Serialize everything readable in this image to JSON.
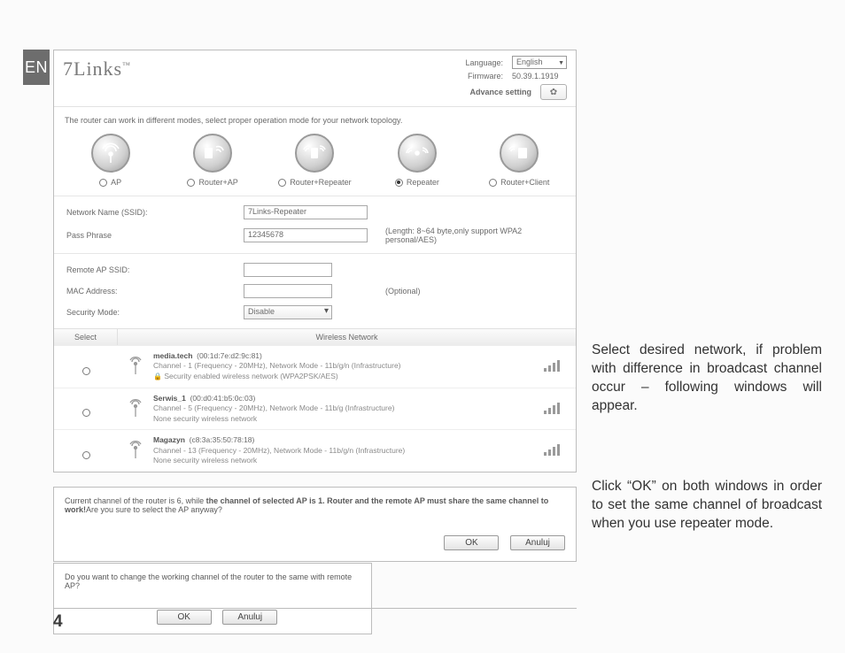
{
  "page_number": "4",
  "lang_badge": "EN",
  "brand": "7Links",
  "header": {
    "language_label": "Language:",
    "language_value": "English",
    "firmware_label": "Firmware:",
    "firmware_value": "50.39.1.1919",
    "advance_label": "Advance setting"
  },
  "intro": "The router can work in different modes, select proper operation mode for your network topology.",
  "modes": [
    {
      "label": "AP",
      "checked": false
    },
    {
      "label": "Router+AP",
      "checked": false
    },
    {
      "label": "Router+Repeater",
      "checked": false
    },
    {
      "label": "Repeater",
      "checked": true
    },
    {
      "label": "Router+Client",
      "checked": false
    }
  ],
  "settings": {
    "ssid_label": "Network Name (SSID):",
    "ssid_value": "7Links-Repeater",
    "pass_label": "Pass Phrase",
    "pass_value": "12345678",
    "pass_hint": "(Length: 8~64 byte,only support WPA2 personal/AES)"
  },
  "settings2": {
    "remote_ssid_label": "Remote AP SSID:",
    "mac_label": "MAC Address:",
    "mac_hint": "(Optional)",
    "security_label": "Security Mode:",
    "security_value": "Disable"
  },
  "network_table": {
    "col_select": "Select",
    "col_network": "Wireless Network",
    "rows": [
      {
        "name": "media.tech",
        "mac": "(00:1d:7e:d2:9c:81)",
        "line2": "Channel - 1 (Frequency - 20MHz), Network Mode - 11b/g/n (Infrastructure)",
        "line3": "Security enabled wireless network (WPA2PSK/AES)",
        "secure": true
      },
      {
        "name": "Serwis_1",
        "mac": "(00:d0:41:b5:0c:03)",
        "line2": "Channel - 5 (Frequency - 20MHz), Network Mode - 11b/g (Infrastructure)",
        "line3": "None security wireless network",
        "secure": false
      },
      {
        "name": "Magazyn",
        "mac": "(c8:3a:35:50:78:18)",
        "line2": "Channel - 13 (Frequency - 20MHz), Network Mode - 11b/g/n (Infrastructure)",
        "line3": "None security wireless network",
        "secure": false
      }
    ]
  },
  "dialog1": {
    "text_part1": "Current channel of the router is 6, while ",
    "text_bold": "the channel of selected AP is 1. Router and the remote AP must share the same channel to work!",
    "text_part2": "Are you sure to select the AP anyway?",
    "ok": "OK",
    "cancel": "Anuluj"
  },
  "dialog2": {
    "text": "Do you want to change the working channel of the router to the same with remote AP?",
    "ok": "OK",
    "cancel": "Anuluj"
  },
  "side": {
    "p1": "Select desired network, if prob­lem with difference in broadcast channel occur – following win­dows will appear.",
    "p2": "Click “OK” on both windows in order to set the same channel of broadcast when you use repeater mode."
  }
}
